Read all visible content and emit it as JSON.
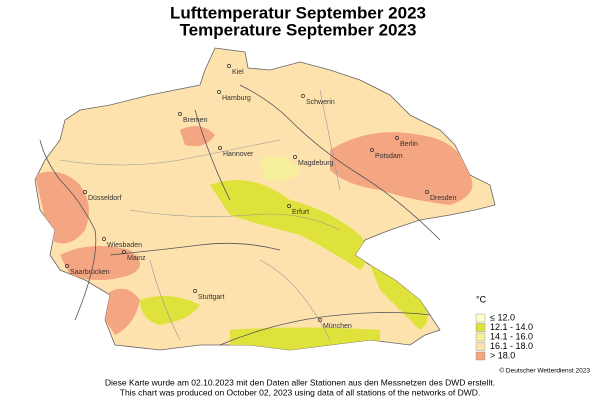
{
  "title": "Lufttemperatur September 2023",
  "subtitle": "Temperature September 2023",
  "cities": [
    "Kiel",
    "Hamburg",
    "Schwerin",
    "Bremen",
    "Berlin",
    "Potsdam",
    "Hannover",
    "Magdeburg",
    "Dresden",
    "Düsseldorf",
    "Erfurt",
    "Wiesbaden",
    "Mainz",
    "Saarbrücken",
    "Stuttgart",
    "München"
  ],
  "legend": {
    "unit": "°C",
    "items": [
      {
        "label": "≤ 12.0",
        "color": "#ffffc8"
      },
      {
        "label": "12.1 - 14.0",
        "color": "#dfe23a"
      },
      {
        "label": "14.1 - 16.0",
        "color": "#f6f09c"
      },
      {
        "label": "16.1 - 18.0",
        "color": "#fde2ae"
      },
      {
        "label": "> 18.0",
        "color": "#f4a582"
      }
    ]
  },
  "credit": "© Deutscher Wetterdienst 2023",
  "footer": [
    "Diese Karte wurde am 02.10.2023 mit den Daten aller Stationen aus den Messnetzen des DWD erstellt.",
    "This chart was produced on October 02, 2023 using data of all stations of the networks of DWD."
  ]
}
